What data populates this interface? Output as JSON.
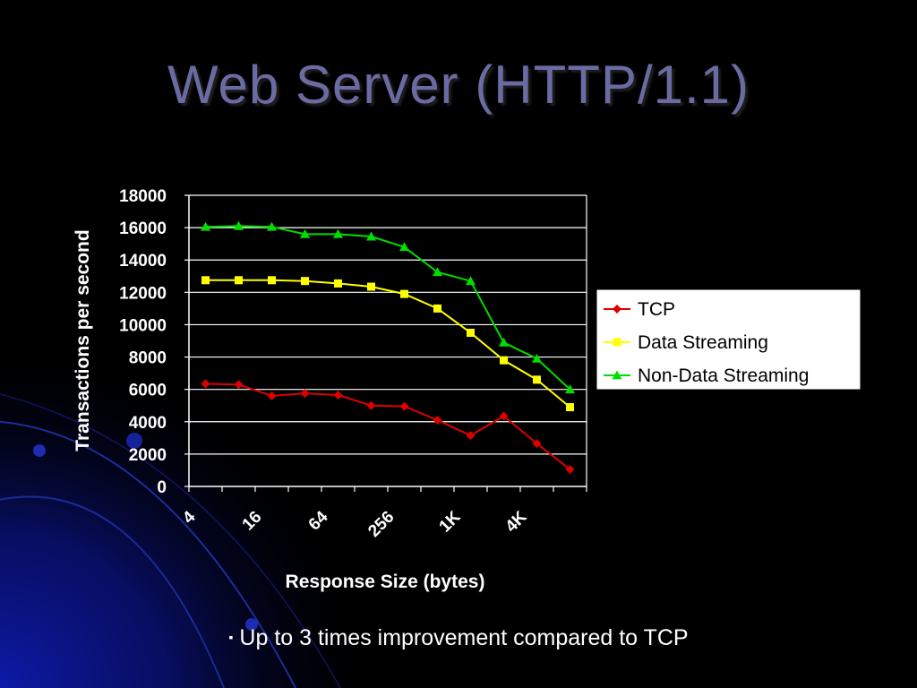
{
  "slide": {
    "title": "Web Server (HTTP/1.1)",
    "bullet_marker": "▪",
    "bullet": "Up to 3 times improvement compared to TCP"
  },
  "colors": {
    "background": "#000000",
    "title": "#6b6ba3",
    "decor_blue": "#0d1aa8"
  },
  "chart_data": {
    "type": "line",
    "xlabel": "Response Size (bytes)",
    "ylabel": "Transactions per second",
    "x_tick_labels": [
      "4",
      "16",
      "64",
      "256",
      "1K",
      "4K"
    ],
    "ylim": [
      0,
      18000
    ],
    "y_ticks": [
      0,
      2000,
      4000,
      6000,
      8000,
      10000,
      12000,
      14000,
      16000,
      18000
    ],
    "grid": true,
    "legend_position": "right",
    "series": [
      {
        "name": "TCP",
        "color": "#dd0000",
        "marker": "diamond",
        "values": [
          6350,
          6300,
          5600,
          5750,
          5650,
          5000,
          4950,
          4100,
          3150,
          4350,
          2650,
          1050
        ]
      },
      {
        "name": "Data Streaming",
        "color": "#ffff00",
        "marker": "square",
        "values": [
          12750,
          12750,
          12750,
          12700,
          12550,
          12350,
          11900,
          11000,
          9500,
          7800,
          6600,
          4900
        ]
      },
      {
        "name": "Non-Data Streaming",
        "color": "#00dd00",
        "marker": "triangle",
        "values": [
          16050,
          16100,
          16050,
          15600,
          15600,
          15450,
          14800,
          13250,
          12700,
          8900,
          7900,
          6000
        ]
      }
    ]
  }
}
